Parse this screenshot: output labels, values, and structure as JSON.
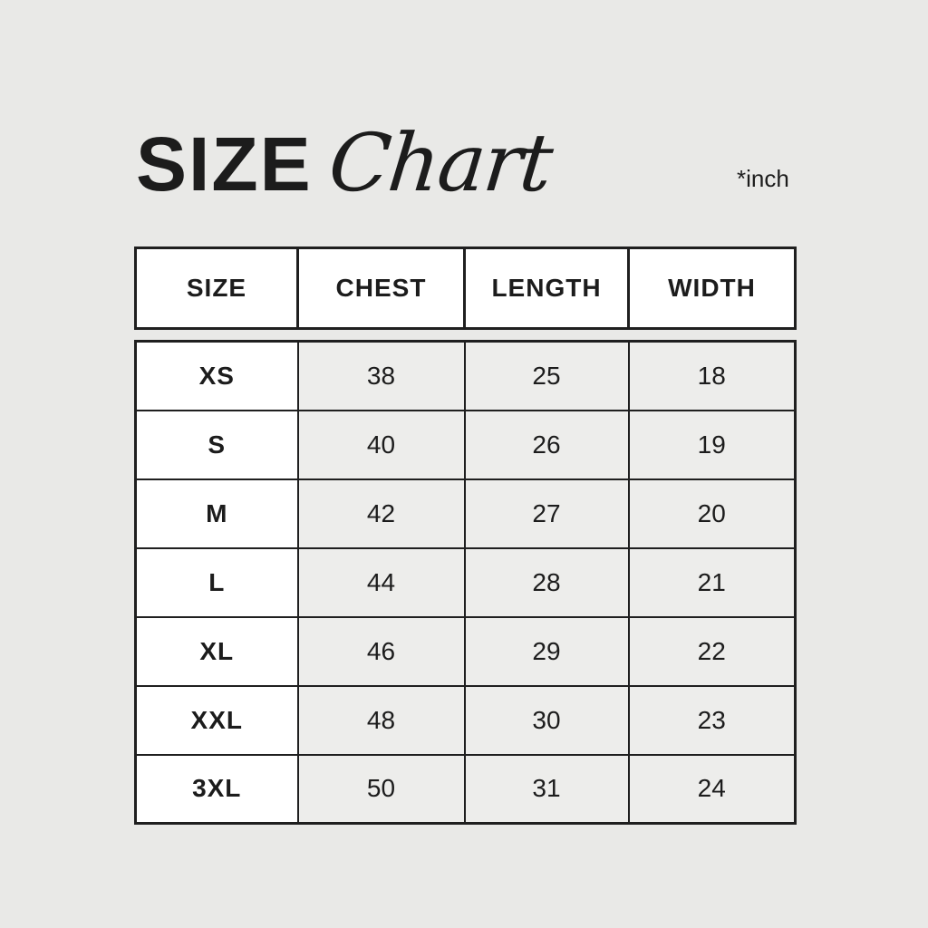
{
  "title": {
    "main": "SIZE",
    "script": "Chart",
    "unit_note": "*inch"
  },
  "table": {
    "headers": [
      "SIZE",
      "CHEST",
      "LENGTH",
      "WIDTH"
    ],
    "rows": [
      [
        "XS",
        "38",
        "25",
        "18"
      ],
      [
        "S",
        "40",
        "26",
        "19"
      ],
      [
        "M",
        "42",
        "27",
        "20"
      ],
      [
        "L",
        "44",
        "28",
        "21"
      ],
      [
        "XL",
        "46",
        "29",
        "22"
      ],
      [
        "XXL",
        "48",
        "30",
        "23"
      ],
      [
        "3XL",
        "50",
        "31",
        "24"
      ]
    ]
  },
  "chart_data": {
    "type": "table",
    "title": "SIZE Chart",
    "unit": "inch",
    "columns": [
      "SIZE",
      "CHEST",
      "LENGTH",
      "WIDTH"
    ],
    "rows": [
      [
        "XS",
        38,
        25,
        18
      ],
      [
        "S",
        40,
        26,
        19
      ],
      [
        "M",
        42,
        27,
        20
      ],
      [
        "L",
        44,
        28,
        21
      ],
      [
        "XL",
        46,
        29,
        22
      ],
      [
        "XXL",
        48,
        30,
        23
      ],
      [
        "3XL",
        50,
        31,
        24
      ]
    ]
  },
  "colors": {
    "background": "#e9e9e7",
    "cell_white": "#ffffff",
    "cell_gray": "#ededeb",
    "border": "#1f1f1f",
    "text": "#1c1c1c"
  }
}
